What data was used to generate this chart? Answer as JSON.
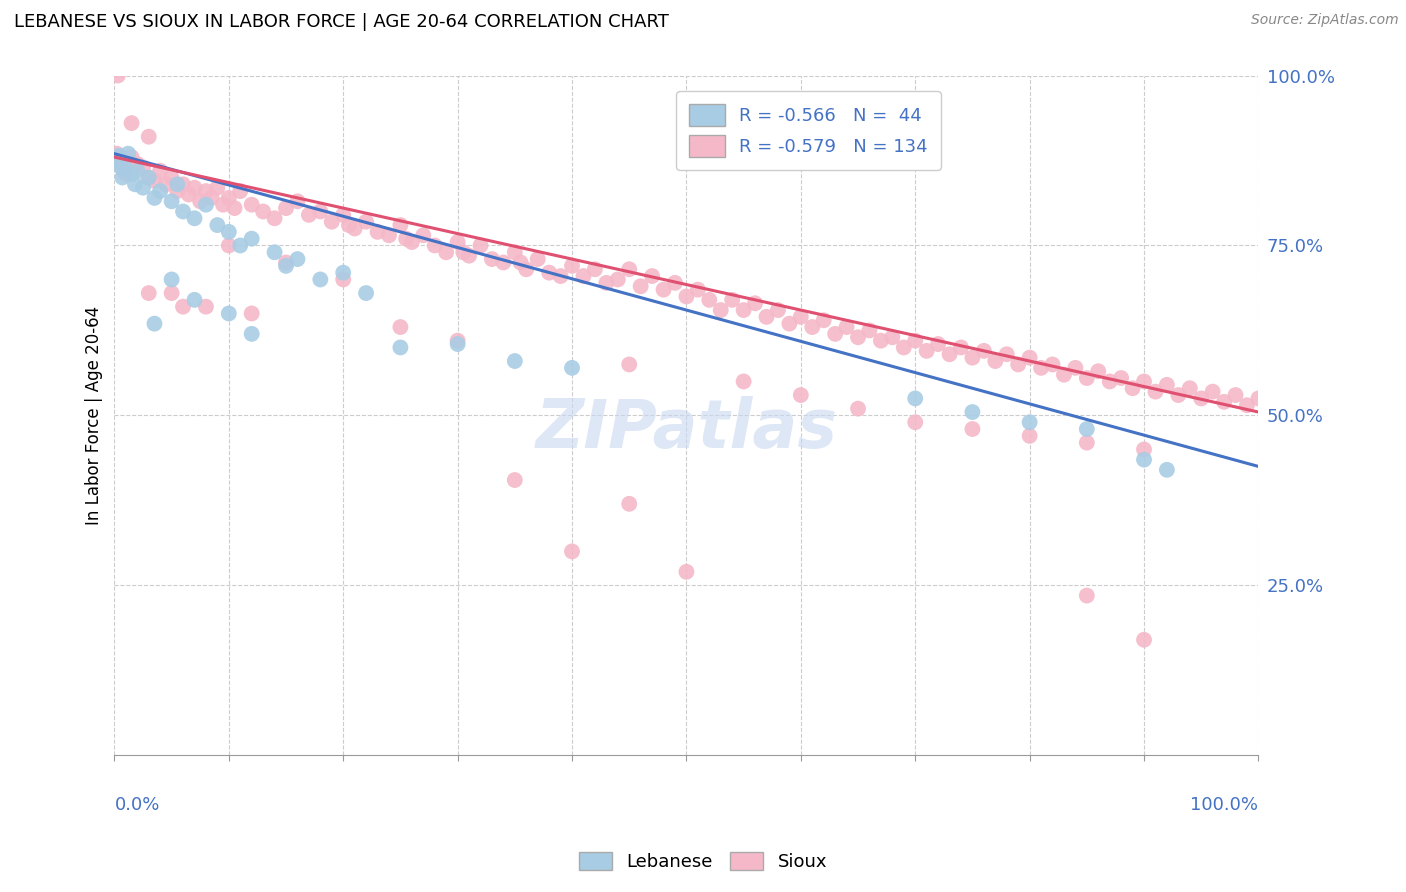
{
  "title": "LEBANESE VS SIOUX IN LABOR FORCE | AGE 20-64 CORRELATION CHART",
  "source": "Source: ZipAtlas.com",
  "ylabel": "In Labor Force | Age 20-64",
  "legend_blue_label": "Lebanese",
  "legend_pink_label": "Sioux",
  "blue_R": -0.566,
  "blue_N": 44,
  "pink_R": -0.579,
  "pink_N": 134,
  "blue_color": "#a8cce4",
  "pink_color": "#f4b8c8",
  "blue_line_color": "#4472c4",
  "pink_line_color": "#e05070",
  "blue_line_x0": 0,
  "blue_line_y0": 88.5,
  "blue_line_x1": 100,
  "blue_line_y1": 42.5,
  "pink_line_x0": 0,
  "pink_line_y0": 88.0,
  "pink_line_x1": 100,
  "pink_line_y1": 50.5,
  "blue_points": [
    [
      0.2,
      87.5
    ],
    [
      0.4,
      88.2
    ],
    [
      0.6,
      86.5
    ],
    [
      0.7,
      85.0
    ],
    [
      0.8,
      87.0
    ],
    [
      1.0,
      86.0
    ],
    [
      1.2,
      88.5
    ],
    [
      1.5,
      85.5
    ],
    [
      1.8,
      84.0
    ],
    [
      2.0,
      86.0
    ],
    [
      2.5,
      83.5
    ],
    [
      3.0,
      85.0
    ],
    [
      3.5,
      82.0
    ],
    [
      4.0,
      83.0
    ],
    [
      5.0,
      81.5
    ],
    [
      5.5,
      84.0
    ],
    [
      6.0,
      80.0
    ],
    [
      7.0,
      79.0
    ],
    [
      8.0,
      81.0
    ],
    [
      9.0,
      78.0
    ],
    [
      10.0,
      77.0
    ],
    [
      11.0,
      75.0
    ],
    [
      12.0,
      76.0
    ],
    [
      14.0,
      74.0
    ],
    [
      15.0,
      72.0
    ],
    [
      16.0,
      73.0
    ],
    [
      18.0,
      70.0
    ],
    [
      20.0,
      71.0
    ],
    [
      22.0,
      68.0
    ],
    [
      5.0,
      70.0
    ],
    [
      7.0,
      67.0
    ],
    [
      10.0,
      65.0
    ],
    [
      3.5,
      63.5
    ],
    [
      12.0,
      62.0
    ],
    [
      25.0,
      60.0
    ],
    [
      30.0,
      60.5
    ],
    [
      35.0,
      58.0
    ],
    [
      40.0,
      57.0
    ],
    [
      70.0,
      52.5
    ],
    [
      75.0,
      50.5
    ],
    [
      80.0,
      49.0
    ],
    [
      85.0,
      48.0
    ],
    [
      90.0,
      43.5
    ],
    [
      92.0,
      42.0
    ]
  ],
  "pink_points": [
    [
      0.3,
      100.0
    ],
    [
      1.5,
      93.0
    ],
    [
      3.0,
      91.0
    ],
    [
      0.2,
      88.5
    ],
    [
      0.5,
      87.0
    ],
    [
      0.8,
      86.0
    ],
    [
      1.0,
      85.5
    ],
    [
      1.5,
      88.0
    ],
    [
      2.0,
      87.0
    ],
    [
      2.5,
      86.5
    ],
    [
      3.0,
      85.0
    ],
    [
      3.5,
      84.5
    ],
    [
      4.0,
      86.0
    ],
    [
      4.5,
      84.0
    ],
    [
      5.0,
      85.0
    ],
    [
      5.5,
      83.0
    ],
    [
      6.0,
      84.0
    ],
    [
      6.5,
      82.5
    ],
    [
      7.0,
      83.5
    ],
    [
      7.5,
      81.5
    ],
    [
      8.0,
      83.0
    ],
    [
      8.5,
      82.0
    ],
    [
      9.0,
      83.5
    ],
    [
      9.5,
      81.0
    ],
    [
      10.0,
      82.0
    ],
    [
      10.5,
      80.5
    ],
    [
      11.0,
      83.0
    ],
    [
      12.0,
      81.0
    ],
    [
      13.0,
      80.0
    ],
    [
      14.0,
      79.0
    ],
    [
      15.0,
      80.5
    ],
    [
      16.0,
      81.5
    ],
    [
      17.0,
      79.5
    ],
    [
      18.0,
      80.0
    ],
    [
      19.0,
      78.5
    ],
    [
      20.0,
      79.5
    ],
    [
      20.5,
      78.0
    ],
    [
      21.0,
      77.5
    ],
    [
      22.0,
      78.5
    ],
    [
      23.0,
      77.0
    ],
    [
      24.0,
      76.5
    ],
    [
      25.0,
      78.0
    ],
    [
      25.5,
      76.0
    ],
    [
      26.0,
      75.5
    ],
    [
      27.0,
      76.5
    ],
    [
      28.0,
      75.0
    ],
    [
      29.0,
      74.0
    ],
    [
      30.0,
      75.5
    ],
    [
      30.5,
      74.0
    ],
    [
      31.0,
      73.5
    ],
    [
      32.0,
      75.0
    ],
    [
      33.0,
      73.0
    ],
    [
      34.0,
      72.5
    ],
    [
      35.0,
      74.0
    ],
    [
      35.5,
      72.5
    ],
    [
      36.0,
      71.5
    ],
    [
      37.0,
      73.0
    ],
    [
      38.0,
      71.0
    ],
    [
      39.0,
      70.5
    ],
    [
      40.0,
      72.0
    ],
    [
      41.0,
      70.5
    ],
    [
      42.0,
      71.5
    ],
    [
      43.0,
      69.5
    ],
    [
      44.0,
      70.0
    ],
    [
      45.0,
      71.5
    ],
    [
      46.0,
      69.0
    ],
    [
      47.0,
      70.5
    ],
    [
      48.0,
      68.5
    ],
    [
      49.0,
      69.5
    ],
    [
      50.0,
      67.5
    ],
    [
      51.0,
      68.5
    ],
    [
      52.0,
      67.0
    ],
    [
      53.0,
      65.5
    ],
    [
      54.0,
      67.0
    ],
    [
      55.0,
      65.5
    ],
    [
      56.0,
      66.5
    ],
    [
      57.0,
      64.5
    ],
    [
      58.0,
      65.5
    ],
    [
      59.0,
      63.5
    ],
    [
      60.0,
      64.5
    ],
    [
      61.0,
      63.0
    ],
    [
      62.0,
      64.0
    ],
    [
      63.0,
      62.0
    ],
    [
      64.0,
      63.0
    ],
    [
      65.0,
      61.5
    ],
    [
      66.0,
      62.5
    ],
    [
      67.0,
      61.0
    ],
    [
      68.0,
      61.5
    ],
    [
      69.0,
      60.0
    ],
    [
      70.0,
      61.0
    ],
    [
      71.0,
      59.5
    ],
    [
      72.0,
      60.5
    ],
    [
      73.0,
      59.0
    ],
    [
      74.0,
      60.0
    ],
    [
      75.0,
      58.5
    ],
    [
      76.0,
      59.5
    ],
    [
      77.0,
      58.0
    ],
    [
      78.0,
      59.0
    ],
    [
      79.0,
      57.5
    ],
    [
      80.0,
      58.5
    ],
    [
      81.0,
      57.0
    ],
    [
      82.0,
      57.5
    ],
    [
      83.0,
      56.0
    ],
    [
      84.0,
      57.0
    ],
    [
      85.0,
      55.5
    ],
    [
      86.0,
      56.5
    ],
    [
      87.0,
      55.0
    ],
    [
      88.0,
      55.5
    ],
    [
      89.0,
      54.0
    ],
    [
      90.0,
      55.0
    ],
    [
      91.0,
      53.5
    ],
    [
      92.0,
      54.5
    ],
    [
      93.0,
      53.0
    ],
    [
      94.0,
      54.0
    ],
    [
      95.0,
      52.5
    ],
    [
      96.0,
      53.5
    ],
    [
      97.0,
      52.0
    ],
    [
      98.0,
      53.0
    ],
    [
      99.0,
      51.5
    ],
    [
      100.0,
      52.5
    ],
    [
      10.0,
      75.0
    ],
    [
      15.0,
      72.5
    ],
    [
      20.0,
      70.0
    ],
    [
      5.0,
      68.0
    ],
    [
      8.0,
      66.0
    ],
    [
      12.0,
      65.0
    ],
    [
      25.0,
      63.0
    ],
    [
      30.0,
      61.0
    ],
    [
      45.0,
      57.5
    ],
    [
      55.0,
      55.0
    ],
    [
      60.0,
      53.0
    ],
    [
      65.0,
      51.0
    ],
    [
      70.0,
      49.0
    ],
    [
      75.0,
      48.0
    ],
    [
      80.0,
      47.0
    ],
    [
      85.0,
      46.0
    ],
    [
      90.0,
      45.0
    ],
    [
      40.0,
      30.0
    ],
    [
      50.0,
      27.0
    ],
    [
      85.0,
      23.5
    ],
    [
      90.0,
      17.0
    ],
    [
      35.0,
      40.5
    ],
    [
      45.0,
      37.0
    ],
    [
      3.0,
      68.0
    ],
    [
      6.0,
      66.0
    ]
  ],
  "xlim": [
    0,
    100
  ],
  "ylim": [
    0,
    100
  ],
  "ytick_values": [
    25,
    50,
    75,
    100
  ],
  "xtick_values": [
    0,
    10,
    20,
    30,
    40,
    50,
    60,
    70,
    80,
    90,
    100
  ],
  "grid_color": "#cccccc",
  "background_color": "#ffffff",
  "axis_label_color": "#4472c4",
  "title_fontsize": 13,
  "source_fontsize": 10,
  "tick_fontsize": 13,
  "ylabel_fontsize": 12,
  "legend_fontsize": 13
}
